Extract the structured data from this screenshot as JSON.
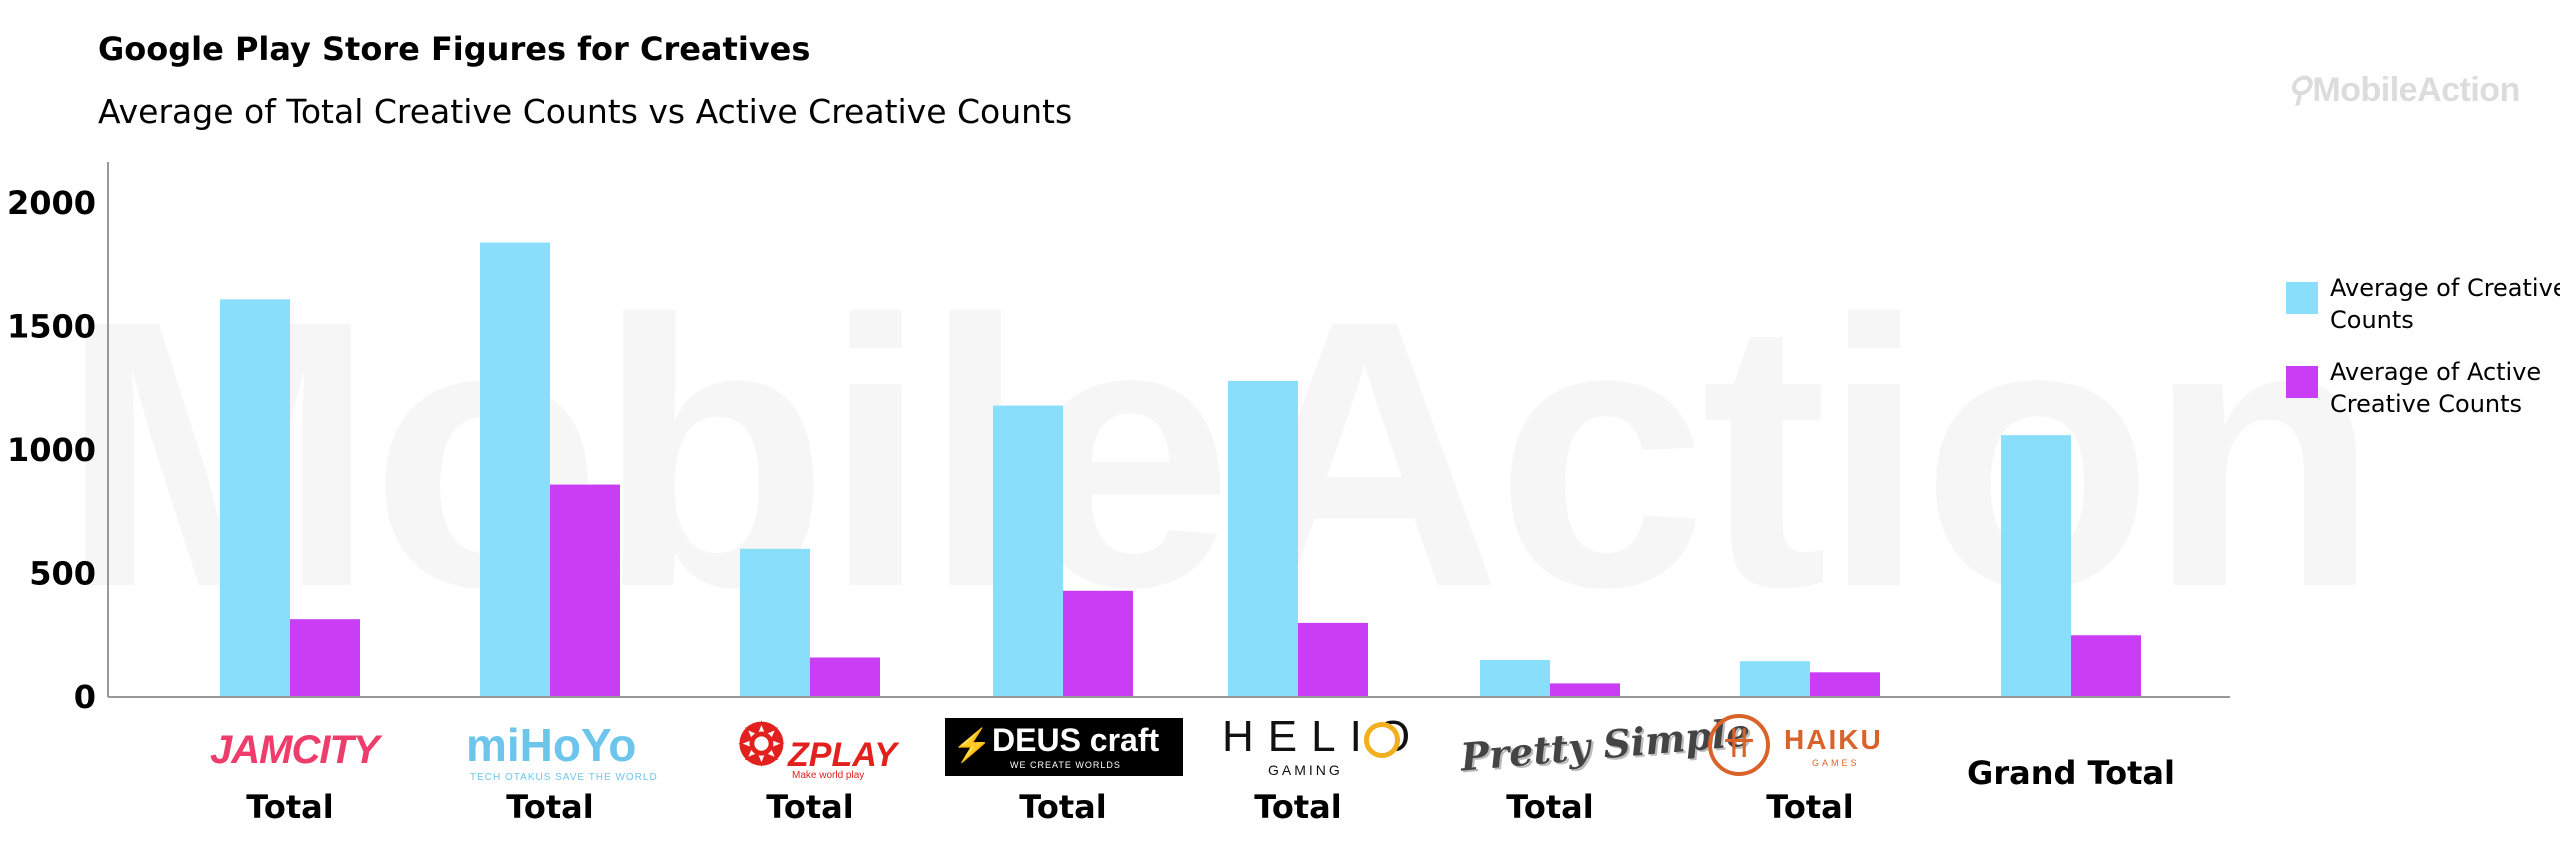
{
  "title": "Google Play Store Figures for Creatives",
  "subtitle": "Average of Total Creative Counts vs Active Creative Counts",
  "brand": "MobileAction",
  "watermark": "MobileAction",
  "colors": {
    "total": "#89dffb",
    "active": "#c93df4",
    "axis": "#999999"
  },
  "logos": {
    "jamcity": "JAMCITY",
    "mihoyo": "miHoYo",
    "mihoyo_tag": "TECH OTAKUS SAVE THE WORLD",
    "zplay": "ZPLAY",
    "zplay_tag": "Make world play",
    "deuscraft": "DEUS craft",
    "deuscraft_tag": "WE CREATE WORLDS",
    "helio": "HELIO",
    "helio_tag": "GAMING",
    "prettysimple": "Pretty Simple",
    "haiku": "HAIKU",
    "haiku_tag": "GAMES"
  },
  "chart_data": {
    "type": "bar",
    "title": "Google Play Store Figures for Creatives",
    "subtitle": "Average of Total Creative Counts vs Active Creative Counts",
    "categories": [
      "Jam City Total",
      "miHoYo Total",
      "ZPLAY Total",
      "Deus Craft Total",
      "Helio Gaming Total",
      "Pretty Simple Total",
      "Haiku Games Total",
      "Grand Total"
    ],
    "category_labels": [
      "Total",
      "Total",
      "Total",
      "Total",
      "Total",
      "Total",
      "Total",
      "Grand Total"
    ],
    "series": [
      {
        "name": "Average of Creative Counts",
        "color": "#89dffb",
        "values": [
          1610,
          1840,
          600,
          1180,
          1280,
          150,
          145,
          1060
        ]
      },
      {
        "name": "Average of Active Creative Counts",
        "color": "#c93df4",
        "values": [
          315,
          860,
          160,
          430,
          300,
          55,
          100,
          250
        ]
      }
    ],
    "yticks": [
      0,
      500,
      1000,
      1500,
      2000
    ],
    "ylim": [
      0,
      2100
    ],
    "grid": false,
    "legend": "right"
  }
}
